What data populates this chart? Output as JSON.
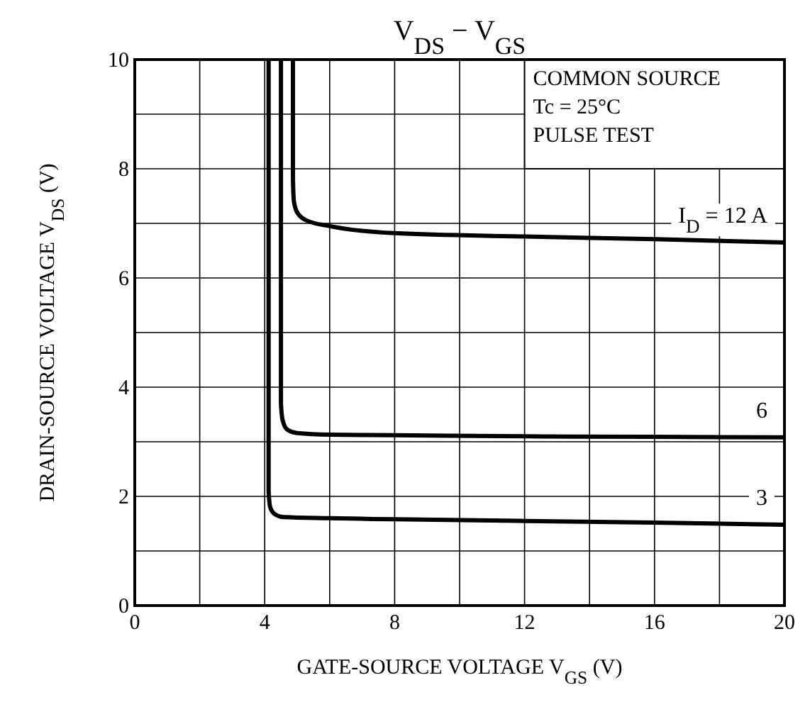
{
  "chart_data": {
    "type": "line",
    "title": "V$_{DS}$ − V$_{GS}$",
    "xlabel": "GATE-SOURCE VOLTAGE   V$_{GS}$   (V)",
    "ylabel": "DRAIN-SOURCE VOLTAGE   V$_{DS}$   (V)",
    "annotations": [
      "COMMON SOURCE",
      "Tc = 25°C",
      "PULSE TEST"
    ],
    "xlim": [
      0,
      20
    ],
    "ylim": [
      0,
      10
    ],
    "xticks": [
      0,
      {
        "value": 2,
        "label": null
      },
      4,
      {
        "value": 6,
        "label": null
      },
      8,
      {
        "value": 10,
        "label": null
      },
      12,
      {
        "value": 14,
        "label": null
      },
      16,
      {
        "value": 18,
        "label": null
      },
      20
    ],
    "yticks": [
      0,
      {
        "value": 1,
        "label": null
      },
      2,
      {
        "value": 3,
        "label": null
      },
      4,
      {
        "value": 5,
        "label": null
      },
      6,
      {
        "value": 7,
        "label": null
      },
      8,
      {
        "value": 9,
        "label": null
      },
      10
    ],
    "grid": true,
    "line_style": "solid",
    "marker": "none",
    "series": [
      {
        "name": "I$_{D}$ = 12 A",
        "color": "#000000",
        "x": [
          4.87,
          4.87,
          4.9,
          5.0,
          5.3,
          6,
          8,
          12,
          16,
          20
        ],
        "values": [
          10,
          7.8,
          7.4,
          7.2,
          7.05,
          6.95,
          6.82,
          6.76,
          6.71,
          6.65
        ]
      },
      {
        "name": "6",
        "color": "#000000",
        "x": [
          4.5,
          4.5,
          4.55,
          4.7,
          5,
          6,
          8,
          12,
          16,
          20
        ],
        "values": [
          10,
          3.7,
          3.4,
          3.22,
          3.16,
          3.13,
          3.12,
          3.1,
          3.09,
          3.08
        ]
      },
      {
        "name": "3",
        "color": "#000000",
        "x": [
          4.12,
          4.12,
          4.17,
          4.3,
          4.6,
          6,
          8,
          12,
          16,
          20
        ],
        "values": [
          10,
          2.1,
          1.8,
          1.68,
          1.62,
          1.6,
          1.58,
          1.55,
          1.52,
          1.48
        ]
      }
    ]
  }
}
